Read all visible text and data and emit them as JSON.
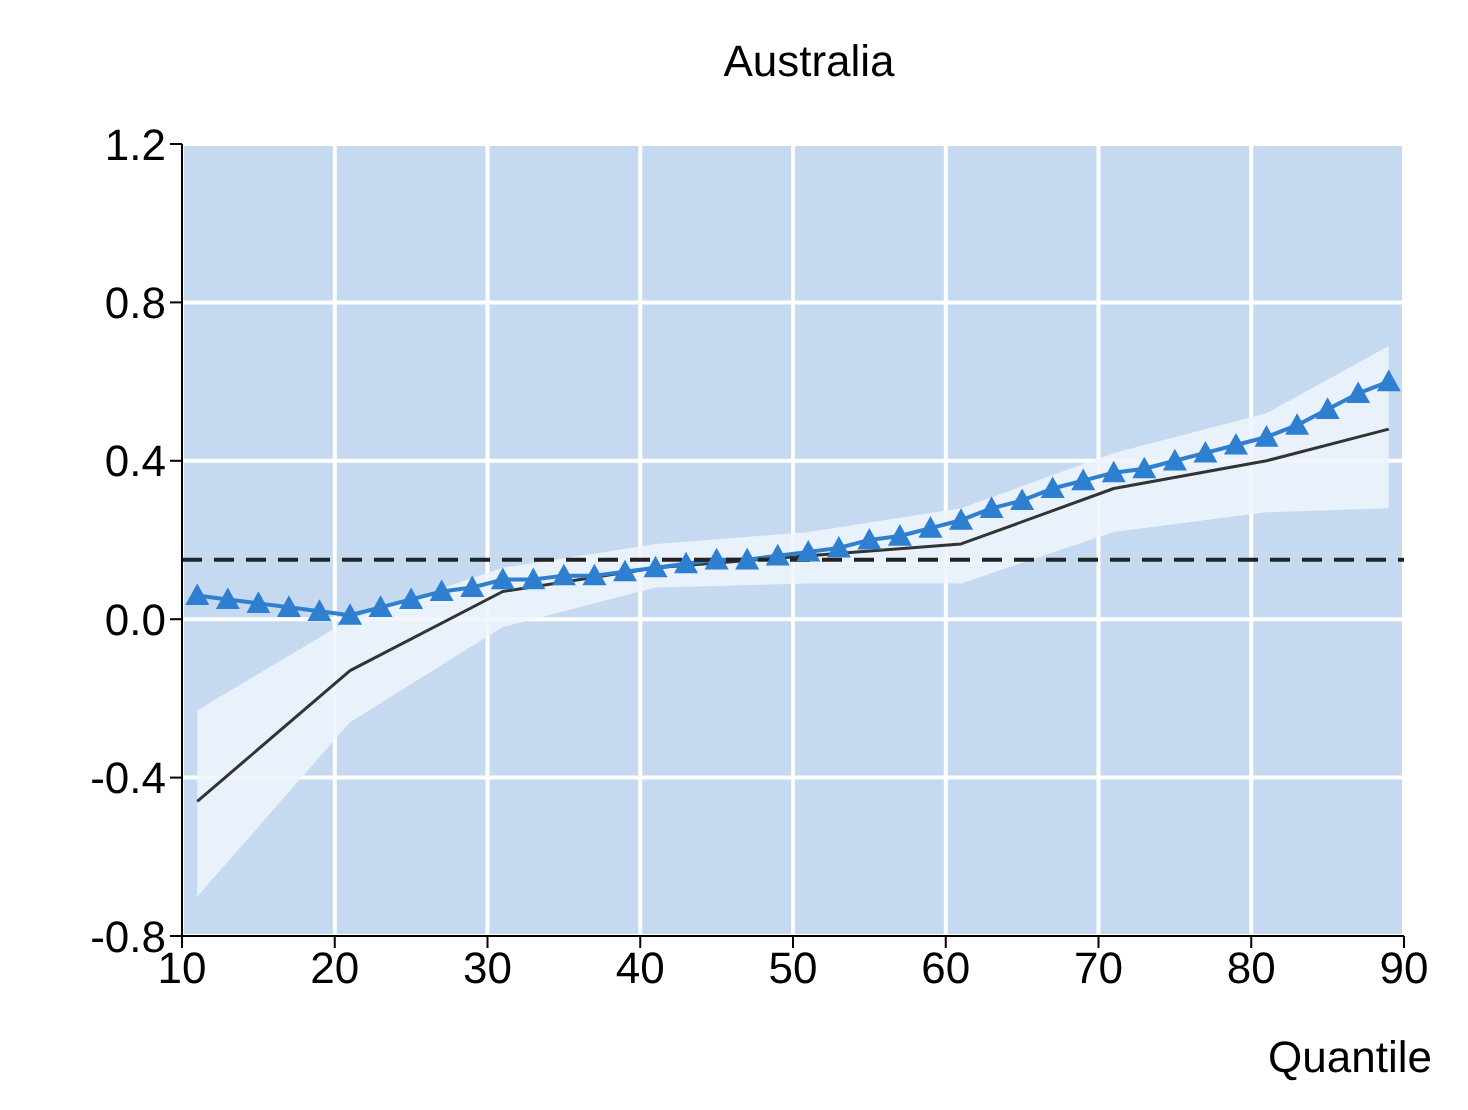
{
  "chart_data": {
    "type": "line",
    "title": "Australia",
    "xlabel": "Quantile",
    "xlim": [
      10,
      90
    ],
    "xticks": [
      10,
      20,
      30,
      40,
      50,
      60,
      70,
      80,
      90
    ],
    "ylim": [
      -0.8,
      1.2
    ],
    "yticks": [
      -0.8,
      -0.4,
      {
        "value": 0,
        "label": "0.0"
      },
      0.4,
      0.8,
      1.2
    ],
    "grid": true,
    "series": [
      {
        "color": "#333333",
        "marker": "none",
        "line_style": "solid",
        "x": [
          11,
          21,
          31,
          41,
          51,
          61,
          71,
          81,
          89
        ],
        "values": [
          -0.46,
          -0.13,
          0.07,
          0.13,
          0.16,
          0.19,
          0.33,
          0.4,
          0.48
        ],
        "lower": [
          -0.7,
          -0.26,
          -0.02,
          0.08,
          0.09,
          0.09,
          0.22,
          0.27,
          0.28
        ],
        "upper": [
          -0.23,
          0.0,
          0.13,
          0.19,
          0.22,
          0.28,
          0.42,
          0.52,
          0.69
        ]
      },
      {
        "color": "#2e7fd0",
        "marker": "triangle",
        "line_style": "solid",
        "x": [
          11,
          13,
          15,
          17,
          19,
          21,
          23,
          25,
          27,
          29,
          31,
          33,
          35,
          37,
          39,
          41,
          43,
          45,
          47,
          49,
          51,
          53,
          55,
          57,
          59,
          61,
          63,
          65,
          67,
          69,
          71,
          73,
          75,
          77,
          79,
          81,
          83,
          85,
          87,
          89
        ],
        "values": [
          0.06,
          0.05,
          0.04,
          0.03,
          0.02,
          0.01,
          0.03,
          0.05,
          0.07,
          0.08,
          0.1,
          0.1,
          0.11,
          0.11,
          0.12,
          0.13,
          0.14,
          0.15,
          0.15,
          0.16,
          0.17,
          0.18,
          0.2,
          0.21,
          0.23,
          0.25,
          0.28,
          0.3,
          0.33,
          0.35,
          0.37,
          0.38,
          0.4,
          0.42,
          0.44,
          0.46,
          0.49,
          0.53,
          0.57,
          0.6
        ]
      }
    ],
    "ref_lines": [
      {
        "axis": "y",
        "value": 0.15,
        "color": "#222222",
        "line_style": "dashed"
      }
    ]
  }
}
